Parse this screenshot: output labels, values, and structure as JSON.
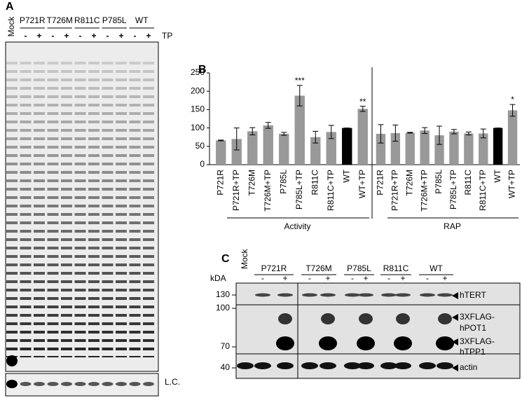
{
  "panel_a": {
    "label": "A",
    "mock": "Mock",
    "groups": [
      "P721R",
      "T726M",
      "R811C",
      "P785L",
      "WT"
    ],
    "signs": [
      "-",
      "+"
    ],
    "treatment": "TP",
    "loading": "L.C."
  },
  "chart_data": {
    "type": "bar",
    "label": "B",
    "categories": [
      "P721R",
      "P721R+TP",
      "T726M",
      "T726M+TP",
      "P785L",
      "P785L+TP",
      "R811C",
      "R811C+TP",
      "WT",
      "WT+TP",
      "P721R",
      "P721R+TP",
      "T726M",
      "T726M+TP",
      "P785L",
      "P785L+TP",
      "R811C",
      "R811C+TP",
      "WT",
      "WT+TP"
    ],
    "values": [
      66,
      70,
      91,
      107,
      84,
      188,
      75,
      89,
      100,
      152,
      84,
      86,
      87,
      93,
      80,
      90,
      85,
      85,
      100,
      148
    ],
    "errors": [
      1,
      30,
      10,
      8,
      4,
      28,
      16,
      18,
      0,
      7,
      25,
      22,
      1,
      8,
      25,
      6,
      4,
      12,
      0,
      16
    ],
    "colors": [
      "#999999",
      "#999999",
      "#999999",
      "#999999",
      "#999999",
      "#999999",
      "#999999",
      "#999999",
      "#000000",
      "#999999",
      "#999999",
      "#999999",
      "#999999",
      "#999999",
      "#999999",
      "#999999",
      "#999999",
      "#999999",
      "#000000",
      "#999999"
    ],
    "annotations": [
      {
        "index": 5,
        "text": "***"
      },
      {
        "index": 9,
        "text": "**"
      },
      {
        "index": 19,
        "text": "*"
      }
    ],
    "groups": [
      "Activity",
      "RAP"
    ],
    "ylim": [
      0,
      250
    ],
    "yticks": [
      0,
      50,
      100,
      150,
      200,
      250
    ]
  },
  "panel_c": {
    "label": "C",
    "kda": "kDA",
    "mock": "Mock",
    "groups": [
      "P721R",
      "T726M",
      "P785L",
      "R811C",
      "WT"
    ],
    "signs": [
      "-",
      "+"
    ],
    "markers": [
      130,
      100,
      70,
      40
    ],
    "bands": [
      [
        "hTERT"
      ],
      [
        "3XFLAG-",
        "hPOT1"
      ],
      [
        "3XFLAG-",
        "hTPP1"
      ],
      [
        "actin"
      ]
    ]
  }
}
